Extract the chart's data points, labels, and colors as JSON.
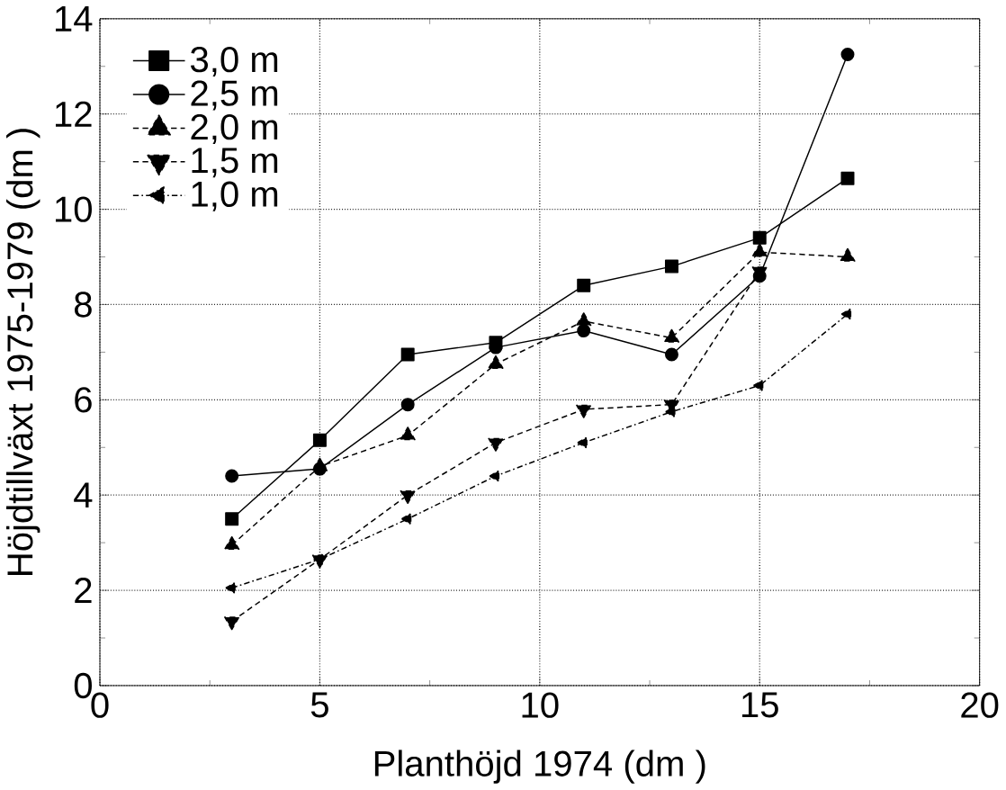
{
  "chart_data": {
    "type": "line",
    "xlabel": "Planthöjd 1974    (dm )",
    "ylabel": "Höjdtillväxt 1975-1979    (dm )",
    "xlim": [
      0,
      20
    ],
    "ylim": [
      0,
      14
    ],
    "xticks": [
      0,
      5,
      10,
      15,
      20
    ],
    "yticks": [
      0,
      2,
      4,
      6,
      8,
      10,
      12,
      14
    ],
    "grid": true,
    "legend": "top left",
    "color": "#000000",
    "series": [
      {
        "name": "3,0 m",
        "marker": "square",
        "line_style": "solid",
        "x": [
          3,
          5,
          7,
          9,
          11,
          13,
          15,
          17
        ],
        "values": [
          3.5,
          5.15,
          6.95,
          7.2,
          8.4,
          8.8,
          9.4,
          10.65
        ]
      },
      {
        "name": "2,5 m",
        "marker": "circle",
        "line_style": "solid",
        "x": [
          3,
          5,
          7,
          9,
          11,
          13,
          15,
          17
        ],
        "values": [
          4.4,
          4.55,
          5.9,
          7.1,
          7.45,
          6.95,
          8.6,
          13.25
        ]
      },
      {
        "name": "2,0 m",
        "marker": "triangle",
        "line_style": "dashed",
        "x": [
          3,
          5,
          7,
          9,
          11,
          13,
          15,
          17
        ],
        "values": [
          2.95,
          4.6,
          5.25,
          6.75,
          7.65,
          7.3,
          9.1,
          9.0
        ]
      },
      {
        "name": "1,5 m",
        "marker": "triangle down",
        "line_style": "dashed",
        "x": [
          3,
          5,
          7,
          9,
          11,
          13,
          15
        ],
        "values": [
          1.35,
          2.65,
          4.0,
          5.1,
          5.8,
          5.9,
          8.7
        ]
      },
      {
        "name": "1,0 m",
        "marker": "triangle left",
        "line_style": "dashdot",
        "x": [
          3,
          5,
          7,
          9,
          11,
          13,
          15,
          17
        ],
        "values": [
          2.05,
          2.65,
          3.5,
          4.4,
          5.1,
          5.75,
          6.3,
          7.8
        ]
      }
    ]
  }
}
